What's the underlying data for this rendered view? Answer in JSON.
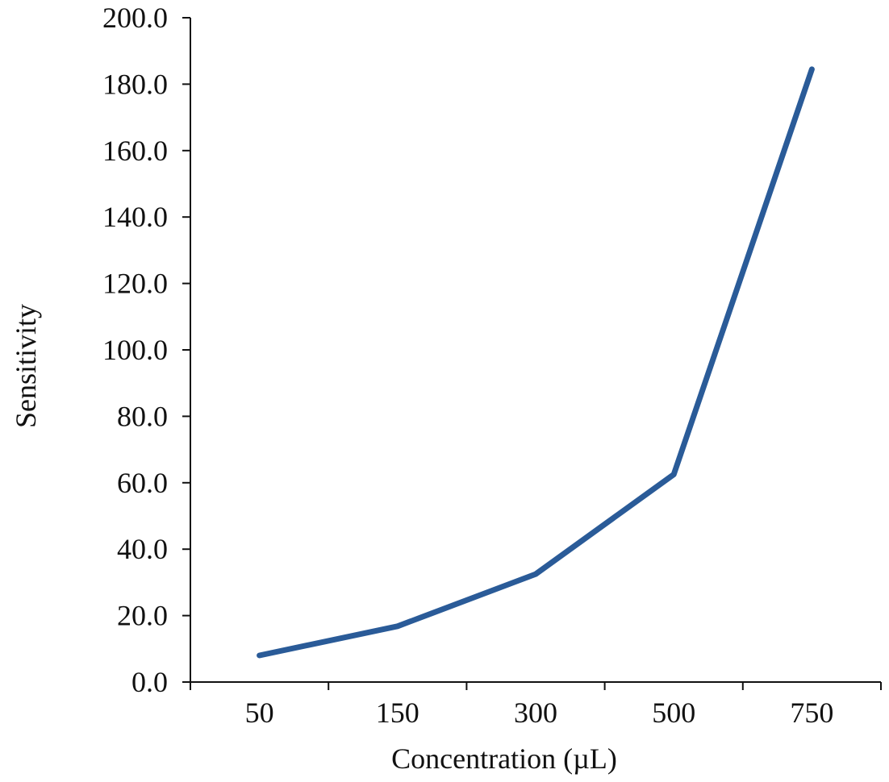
{
  "chart_data": {
    "type": "line",
    "categories": [
      "50",
      "150",
      "300",
      "500",
      "750"
    ],
    "series": [
      {
        "values": [
          8.0,
          16.8,
          32.5,
          62.5,
          184.5
        ]
      }
    ],
    "xlabel": "Concentration (µL)",
    "ylabel": "Sensitivity",
    "ylim": [
      0,
      200
    ],
    "yticks": [
      "0.0",
      "20.0",
      "40.0",
      "60.0",
      "80.0",
      "100.0",
      "120.0",
      "140.0",
      "160.0",
      "180.0",
      "200.0"
    ],
    "grid": false,
    "line_color": "#2a5b98"
  }
}
